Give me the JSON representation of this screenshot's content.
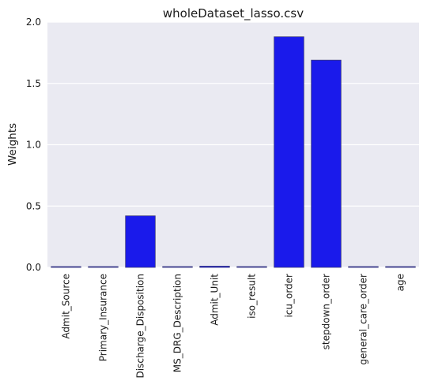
{
  "chart_data": {
    "type": "bar",
    "title": "wholeDataset_lasso.csv",
    "xlabel": "",
    "ylabel": "Weights",
    "ylim": [
      0,
      2.0
    ],
    "yticks": [
      "0.0",
      "0.5",
      "1.0",
      "1.5",
      "2.0"
    ],
    "grid": true,
    "categories": [
      "Admit_Source",
      "Primary_Insurance",
      "Discharge_Disposition",
      "MS_DRG_Description",
      "Admit_Unit",
      "iso_result",
      "icu_order",
      "stepdown_order",
      "general_care_order",
      "age"
    ],
    "values": [
      0.0,
      0.0,
      0.42,
      0.0,
      0.01,
      0.0,
      1.88,
      1.69,
      0.0,
      0.0
    ],
    "colors": {
      "bar": "#1a1aeb",
      "bar_edge": "#3a3a7a",
      "background": "#eaeaf2",
      "grid": "#ffffff"
    }
  }
}
